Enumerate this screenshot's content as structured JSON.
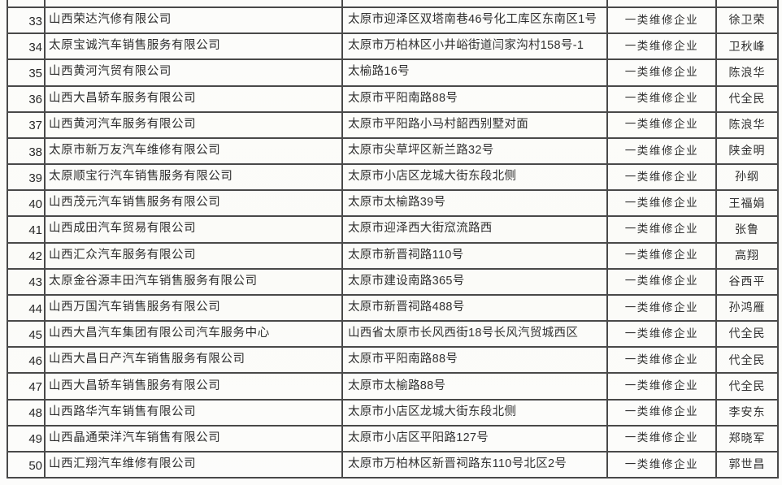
{
  "document": {
    "kind": "scanned enterprise list table",
    "visible_row_range": "33-50",
    "category_value_repeated": "一类维修企业",
    "colors": {
      "line": "#484848",
      "ink": "#2e2e2e",
      "paper": "#fcfcfa"
    }
  },
  "table": {
    "rows": [
      {
        "no": "33",
        "company": "山西荣达汽修有限公司",
        "address": "太原市迎泽区双塔南巷46号化工库区东南区1号",
        "category": "一类维修企业",
        "person": "徐卫荣"
      },
      {
        "no": "34",
        "company": "太原宝诚汽车销售服务有限公司",
        "address": "太原市万柏林区小井峪街道闫家沟村158号-1",
        "category": "一类维修企业",
        "person": "卫秋峰"
      },
      {
        "no": "35",
        "company": "山西黄河汽贸有限公司",
        "address": "太榆路16号",
        "category": "一类维修企业",
        "person": "陈浪华"
      },
      {
        "no": "36",
        "company": "山西大昌轿车服务有限公司",
        "address": "太原市平阳南路88号",
        "category": "一类维修企业",
        "person": "代全民"
      },
      {
        "no": "37",
        "company": "山西黄河汽车服务有限公司",
        "address": "太原市平阳路小马村韶西别墅对面",
        "category": "一类维修企业",
        "person": "陈浪华"
      },
      {
        "no": "38",
        "company": "太原市新万友汽车维修有限公司",
        "address": "太原市尖草坪区新兰路32号",
        "category": "一类维修企业",
        "person": "陕金明"
      },
      {
        "no": "39",
        "company": "太原顺宝行汽车销售服务有限公司",
        "address": "太原市小店区龙城大街东段北侧",
        "category": "一类维修企业",
        "person": "孙纲"
      },
      {
        "no": "40",
        "company": "山西茂元汽车销售服务有限公司",
        "address": "太原市太榆路39号",
        "category": "一类维修企业",
        "person": "王福娟"
      },
      {
        "no": "41",
        "company": "山西成田汽车贸易有限公司",
        "address": "太原市迎泽西大街窊流路西",
        "category": "一类维修企业",
        "person": "张鲁"
      },
      {
        "no": "42",
        "company": "山西汇众汽车服务有限公司",
        "address": "太原市新晋祠路110号",
        "category": "一类维修企业",
        "person": "高翔"
      },
      {
        "no": "43",
        "company": "太原金谷源丰田汽车销售服务有限公司",
        "address": "太原市建设南路365号",
        "category": "一类维修企业",
        "person": "谷西平"
      },
      {
        "no": "44",
        "company": "山西万国汽车销售服务有限公司",
        "address": "太原市新晋祠路488号",
        "category": "一类维修企业",
        "person": "孙鸿雁"
      },
      {
        "no": "45",
        "company": "山西大昌汽车集团有限公司汽车服务中心",
        "address": "山西省太原市长风西街18号长风汽贸城西区",
        "category": "一类维修企业",
        "person": "代全民"
      },
      {
        "no": "46",
        "company": "山西大昌日产汽车销售服务有限公司",
        "address": "太原市平阳南路88号",
        "category": "一类维修企业",
        "person": "代全民"
      },
      {
        "no": "47",
        "company": "山西大昌轿车销售服务有限公司",
        "address": "太原市太榆路88号",
        "category": "一类维修企业",
        "person": "代全民"
      },
      {
        "no": "48",
        "company": "山西路华汽车销售有限公司",
        "address": "太原市小店区龙城大街东段北侧",
        "category": "一类维修企业",
        "person": "李安东"
      },
      {
        "no": "49",
        "company": "山西晶通荣洋汽车销售有限公司",
        "address": "太原市小店区平阳路127号",
        "category": "一类维修企业",
        "person": "郑晓军"
      },
      {
        "no": "50",
        "company": "山西汇翔汽车维修有限公司",
        "address": "太原市万柏林区新晋祠路东110号北区2号",
        "category": "一类维修企业",
        "person": "郭世昌"
      }
    ]
  }
}
